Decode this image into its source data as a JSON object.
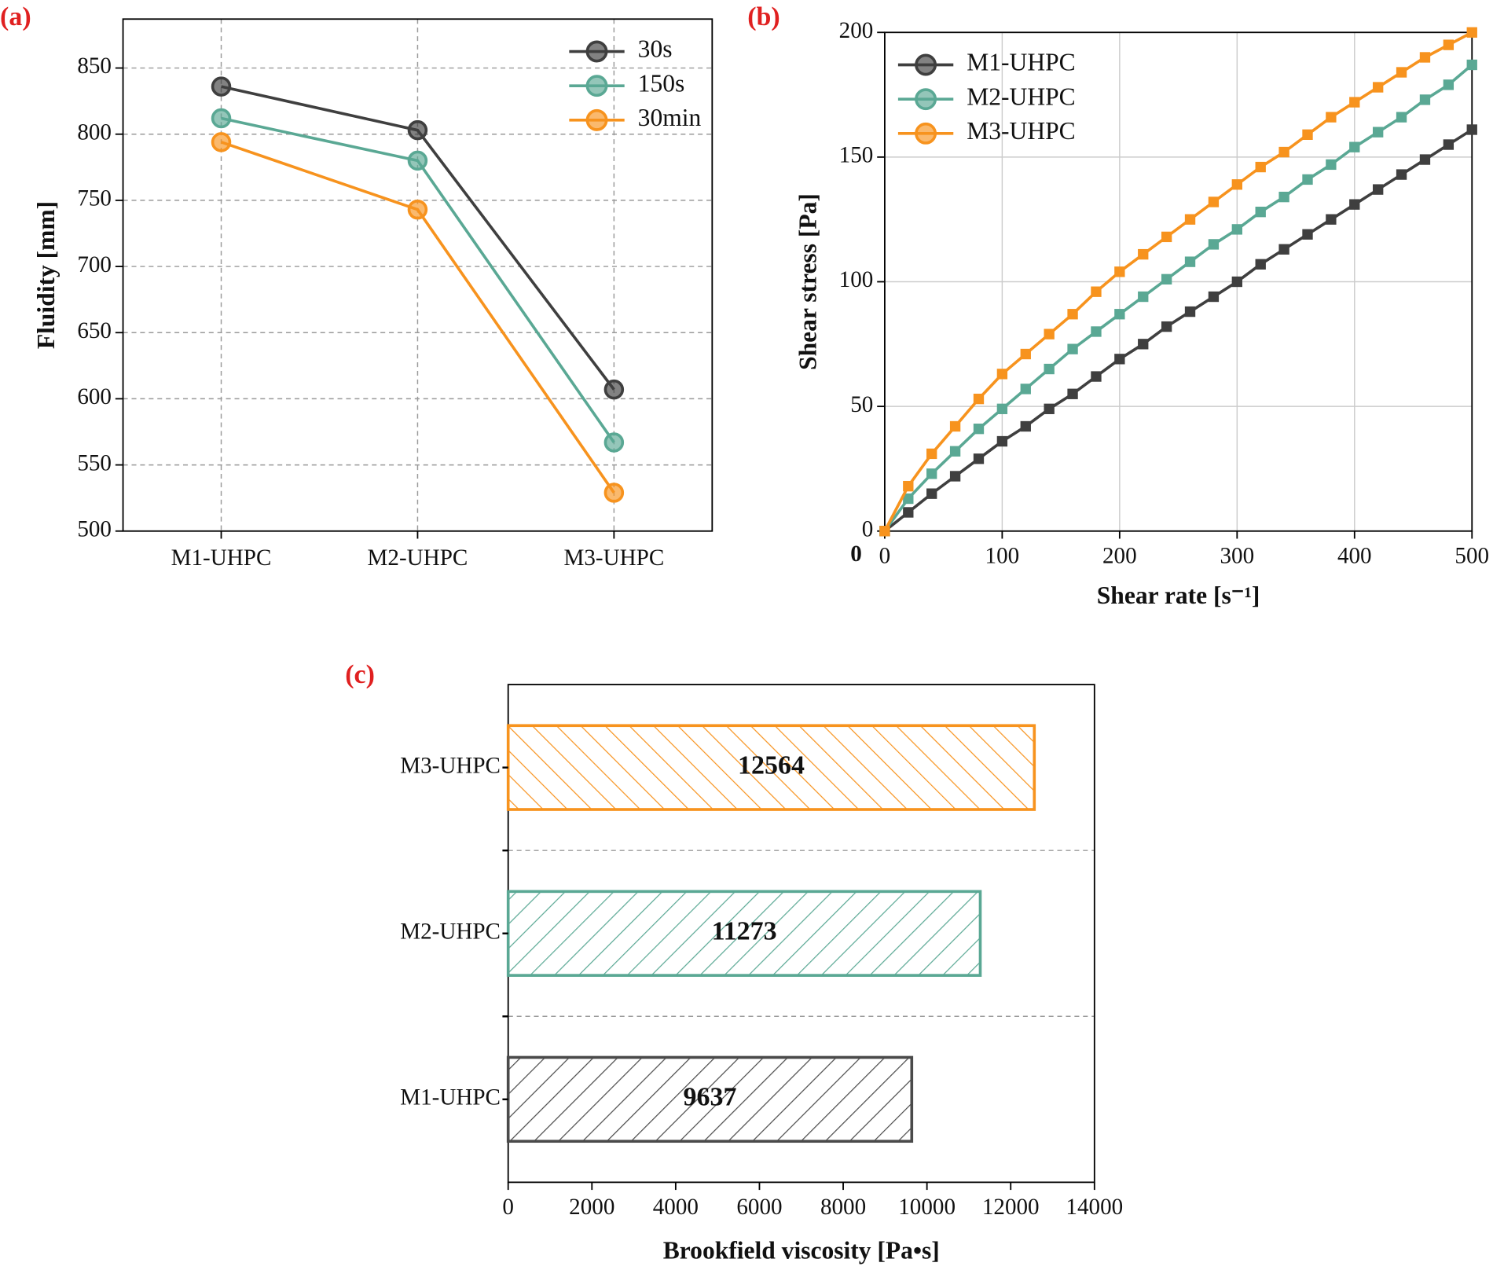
{
  "chart_data": [
    {
      "type": "line",
      "label": "(a)",
      "y_label": "Fluidity [mm]",
      "categories": [
        "M1-UHPC",
        "M2-UHPC",
        "M3-UHPC"
      ],
      "series": [
        {
          "name": "30s",
          "color": "#3f3f3f",
          "values": [
            836,
            803,
            607
          ]
        },
        {
          "name": "150s",
          "color": "#5aa894",
          "values": [
            812,
            780,
            567
          ]
        },
        {
          "name": "30min",
          "color": "#f7931e",
          "values": [
            794,
            743,
            529
          ]
        }
      ],
      "ylim": [
        500,
        887
      ],
      "yticks": [
        500,
        550,
        600,
        650,
        700,
        750,
        800,
        850
      ],
      "grid": true,
      "grid_style": "dashed",
      "legend": "upper right",
      "marker": "circle"
    },
    {
      "type": "line",
      "label": "(b)",
      "x_label": "Shear rate [s⁻¹]",
      "y_label": "Shear stress [Pa]",
      "annotations": [
        "0"
      ],
      "x": [
        0,
        20,
        40,
        60,
        80,
        100,
        120,
        140,
        160,
        180,
        200,
        220,
        240,
        260,
        280,
        300,
        320,
        340,
        360,
        380,
        400,
        420,
        440,
        460,
        480,
        500
      ],
      "series": [
        {
          "name": "M1-UHPC",
          "color": "#3f3f3f",
          "values": [
            0,
            7.5,
            15,
            22,
            29,
            36,
            42,
            49,
            55,
            62,
            69,
            75,
            82,
            88,
            94,
            100,
            107,
            113,
            119,
            125,
            131,
            137,
            143,
            149,
            155,
            161
          ]
        },
        {
          "name": "M2-UHPC",
          "color": "#5aa894",
          "values": [
            0,
            13,
            23,
            32,
            41,
            49,
            57,
            65,
            73,
            80,
            87,
            94,
            101,
            108,
            115,
            121,
            128,
            134,
            141,
            147,
            154,
            160,
            166,
            173,
            179,
            187
          ]
        },
        {
          "name": "M3-UHPC",
          "color": "#f7931e",
          "values": [
            0,
            18,
            31,
            42,
            53,
            63,
            71,
            79,
            87,
            96,
            104,
            111,
            118,
            125,
            132,
            139,
            146,
            152,
            159,
            166,
            172,
            178,
            184,
            190,
            195,
            200
          ]
        }
      ],
      "xlim": [
        0,
        500
      ],
      "xticks": [
        0,
        100,
        200,
        300,
        400,
        500
      ],
      "ylim": [
        0,
        200
      ],
      "yticks": [
        0,
        50,
        100,
        150,
        200
      ],
      "grid": true,
      "grid_style": "solid",
      "legend": "upper left",
      "marker": "square"
    },
    {
      "type": "barh",
      "label": "(c)",
      "x_label": "Brookfield viscosity [Pa•s]",
      "categories": [
        "M1-UHPC",
        "M2-UHPC",
        "M3-UHPC"
      ],
      "values": [
        9637,
        11273,
        12564
      ],
      "colors": [
        "#4a4a4a",
        "#5aa894",
        "#f7931e"
      ],
      "hatch": [
        "/",
        "/",
        "\\"
      ],
      "xlim": [
        0,
        14000
      ],
      "xticks": [
        0,
        2000,
        4000,
        6000,
        8000,
        10000,
        12000,
        14000
      ],
      "grid": true,
      "grid_style": "dashed"
    }
  ]
}
